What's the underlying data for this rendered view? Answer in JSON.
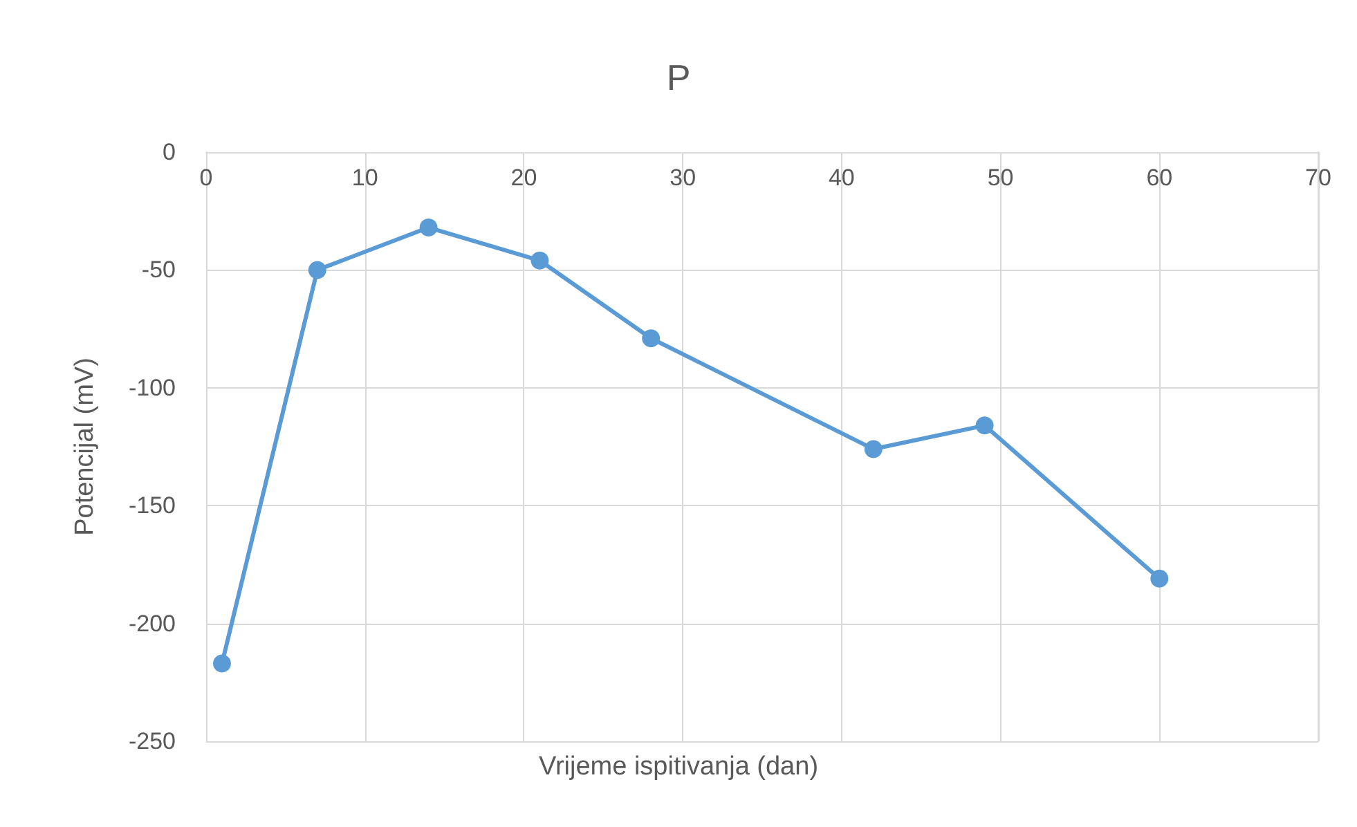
{
  "chart_data": {
    "type": "line",
    "title": "P",
    "xlabel": "Vrijeme ispitivanja (dan)",
    "ylabel": "Potencijal (mV)",
    "x": [
      1,
      7,
      14,
      21,
      28,
      42,
      49,
      60
    ],
    "series": [
      {
        "color": "#5b9bd5",
        "values": [
          -217,
          -50,
          -32,
          -46,
          -79,
          -126,
          -116,
          -181
        ]
      }
    ],
    "xlim": [
      0,
      70
    ],
    "xticks": [
      0,
      10,
      20,
      30,
      40,
      50,
      60,
      70
    ],
    "ylim": [
      -250,
      0
    ],
    "yticks": [
      -250,
      -200,
      -150,
      -100,
      -50,
      0
    ],
    "grid": true,
    "marker": "circle",
    "line_style": "solid"
  }
}
